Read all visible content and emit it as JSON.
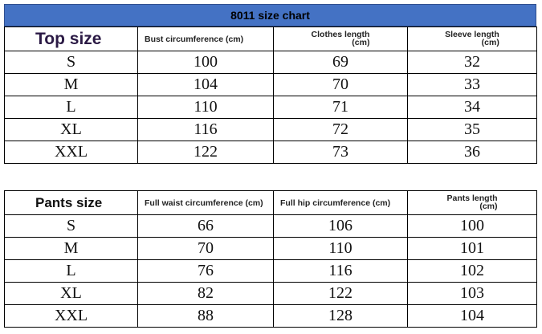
{
  "title": "8011 size chart",
  "top": {
    "label": "Top size",
    "headers": [
      "Bust circumference (cm)",
      "Clothes length",
      "(cm)",
      "Sleeve length",
      "(cm)"
    ],
    "rows": [
      {
        "size": "S",
        "v1": "100",
        "v2": "69",
        "v3": "32"
      },
      {
        "size": "M",
        "v1": "104",
        "v2": "70",
        "v3": "33"
      },
      {
        "size": "L",
        "v1": "110",
        "v2": "71",
        "v3": "34"
      },
      {
        "size": "XL",
        "v1": "116",
        "v2": "72",
        "v3": "35"
      },
      {
        "size": "XXL",
        "v1": "122",
        "v2": "73",
        "v3": "36"
      }
    ]
  },
  "pants": {
    "label": "Pants size",
    "headers": [
      "Full waist circumference (cm)",
      "Full hip circumference (cm)",
      "Pants length",
      "(cm)"
    ],
    "rows": [
      {
        "size": "S",
        "v1": "66",
        "v2": "106",
        "v3": "100"
      },
      {
        "size": "M",
        "v1": "70",
        "v2": "110",
        "v3": "101"
      },
      {
        "size": "L",
        "v1": "76",
        "v2": "116",
        "v3": "102"
      },
      {
        "size": "XL",
        "v1": "82",
        "v2": "122",
        "v3": "103"
      },
      {
        "size": "XXL",
        "v1": "88",
        "v2": "128",
        "v3": "104"
      }
    ]
  },
  "colors": {
    "title_bar": "#4472c4",
    "label_text": "#2b1a45"
  }
}
